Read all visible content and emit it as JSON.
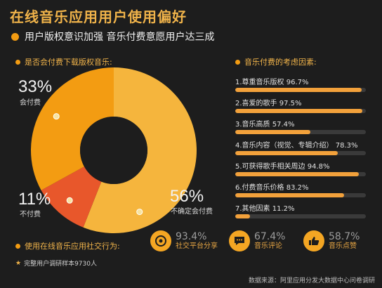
{
  "title": "在线音乐应用用户使用偏好",
  "subtitle": "用户版权意识加强 音乐付费意愿用户达三成",
  "left_section": "是否会付费下载版权音乐:",
  "right_section": "音乐付费的考虑因素:",
  "social_section": "使用在线音乐应用社交行为:",
  "chart_data": [
    {
      "type": "pie",
      "title": "是否会付费下载版权音乐:",
      "slices": [
        {
          "label": "会付费",
          "pct_text": "33%",
          "value": 33,
          "color": "#f39c12"
        },
        {
          "label": "不付费",
          "pct_text": "11%",
          "value": 11,
          "color": "#e8572b"
        },
        {
          "label": "不确定会付费",
          "pct_text": "56%",
          "value": 56,
          "color": "#f5b53d"
        }
      ]
    },
    {
      "type": "bar",
      "title": "音乐付费的考虑因素:",
      "items": [
        {
          "label": "1.尊重音乐版权",
          "value": 96.7,
          "value_text": "96.7%"
        },
        {
          "label": "2.喜爱的歌手",
          "value": 97.5,
          "value_text": "97.5%"
        },
        {
          "label": "3.音乐高质",
          "value": 57.4,
          "value_text": "57.4%"
        },
        {
          "label": "4.音乐内容（视觉、专辑介绍）",
          "value": 78.3,
          "value_text": "78.3%"
        },
        {
          "label": "5.可获得歌手相关周边",
          "value": 94.8,
          "value_text": "94.8%"
        },
        {
          "label": "6.付费音乐价格",
          "value": 83.2,
          "value_text": "83.2%"
        },
        {
          "label": "7.其他因素",
          "value": 11.2,
          "value_text": "11.2%"
        }
      ],
      "xlim": [
        0,
        100
      ]
    },
    {
      "type": "table",
      "title": "使用在线音乐应用社交行为:",
      "items": [
        {
          "label": "社交平台分享",
          "value_text": "93.4%",
          "icon": "share-icon"
        },
        {
          "label": "音乐评论",
          "value_text": "67.4%",
          "icon": "comment-icon"
        },
        {
          "label": "音乐点赞",
          "value_text": "58.7%",
          "icon": "thumbs-up-icon"
        }
      ]
    }
  ],
  "sample_note": "完整用户调研样本9730人",
  "source": "数据来源：阿里应用分发大数据中心问卷调研"
}
